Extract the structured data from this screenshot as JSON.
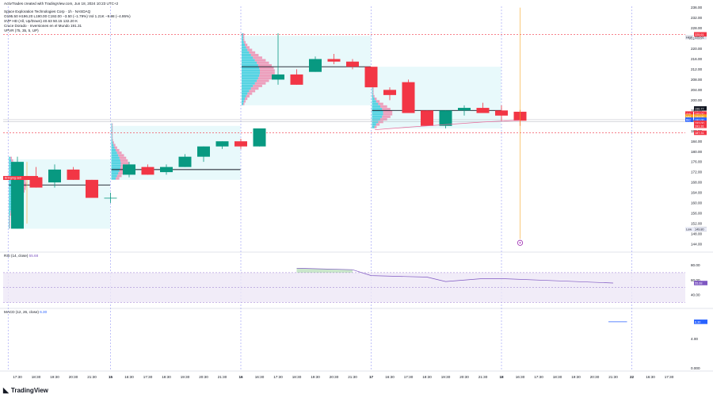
{
  "header": {
    "credit": "ActivTrades created with TradingView.com, Jun 18, 2024 10:23 UTC+2",
    "symbol": "Space Exploration Technologies Corp · 1h · NASDAQ",
    "ohlc": "O195.50 H196.20 L190.00 C192.00 −3.50 (−1.79%) Vol 1.21K −9.98 (−4.95%)",
    "indicator_1": "SVP HD (All, Up/Down) 40.63 50.15 132.20 K",
    "indicator_2": "Cruce Dorado · Inversiones en el Mundo 191.31",
    "indicator_3": "VPVR (75, 35, 5, UP)"
  },
  "panes": {
    "rsi_label": "RSI (14, close)",
    "rsi_value": "55.68",
    "macd_label": "MACD (12, 26, close)",
    "macd_value": "6.30"
  },
  "brand": {
    "name": "TradingView",
    "icon": "tradingview-logo-icon"
  },
  "colors": {
    "up": "#089981",
    "down": "#f23645",
    "profile_up": "#26c6da",
    "profile_down": "#f06292",
    "rsi": "#7e57c2",
    "vline": "#f5a623"
  },
  "chart_data": [
    {
      "type": "candlestick",
      "title": "Space Exploration Technologies Corp · 1h · NASDAQ",
      "x_ticks": [
        "17:30",
        "18:30",
        "19:30",
        "20:30",
        "21:30",
        "15",
        "16:30",
        "17:30",
        "18:30",
        "19:30",
        "20:30",
        "21:30",
        "16",
        "16:30",
        "17:30",
        "18:30",
        "19:30",
        "20:30",
        "21:30",
        "17",
        "16:30",
        "17:30",
        "18:30",
        "19:30",
        "20:30",
        "21:30",
        "18",
        "16:30",
        "17:30",
        "18:30",
        "19:30",
        "20:30",
        "21:30",
        "22",
        "16:30",
        "17:30"
      ],
      "y_ticks": [
        144,
        148,
        152,
        156,
        160,
        164,
        168,
        172,
        176,
        180,
        184,
        188,
        192,
        196,
        200,
        204,
        208,
        212,
        216,
        220,
        224,
        228,
        232,
        236
      ],
      "ylim": [
        141.5,
        236.5
      ],
      "candles": [
        {
          "o": 150,
          "h": 178,
          "l": 150,
          "c": 176
        },
        {
          "o": 170,
          "h": 174,
          "l": 166,
          "c": 166
        },
        {
          "o": 168,
          "h": 175,
          "l": 166,
          "c": 173
        },
        {
          "o": 173,
          "h": 174,
          "l": 169,
          "c": 169
        },
        {
          "o": 169,
          "h": 169,
          "l": 162,
          "c": 162
        },
        {
          "o": 162,
          "h": 164,
          "l": 160,
          "c": 162
        },
        {
          "o": 171,
          "h": 176,
          "l": 170,
          "c": 175
        },
        {
          "o": 174,
          "h": 175,
          "l": 171,
          "c": 171
        },
        {
          "o": 172,
          "h": 175,
          "l": 171,
          "c": 174
        },
        {
          "o": 174,
          "h": 179,
          "l": 174,
          "c": 178
        },
        {
          "o": 178,
          "h": 182,
          "l": 176,
          "c": 182
        },
        {
          "o": 182,
          "h": 184,
          "l": 181,
          "c": 184
        },
        {
          "o": 184,
          "h": 185,
          "l": 181,
          "c": 182
        },
        {
          "o": 182,
          "h": 189,
          "l": 182,
          "c": 189
        },
        {
          "o": 208,
          "h": 226,
          "l": 206,
          "c": 210
        },
        {
          "o": 210,
          "h": 212,
          "l": 206,
          "c": 206
        },
        {
          "o": 211,
          "h": 217,
          "l": 211,
          "c": 216
        },
        {
          "o": 216,
          "h": 218,
          "l": 214,
          "c": 215
        },
        {
          "o": 215,
          "h": 216,
          "l": 212,
          "c": 213
        },
        {
          "o": 213,
          "h": 213,
          "l": 205,
          "c": 205
        },
        {
          "o": 204,
          "h": 205,
          "l": 200,
          "c": 202
        },
        {
          "o": 207,
          "h": 208,
          "l": 195,
          "c": 195
        },
        {
          "o": 196,
          "h": 196,
          "l": 190,
          "c": 190
        },
        {
          "o": 190,
          "h": 196,
          "l": 189,
          "c": 196
        },
        {
          "o": 196,
          "h": 198,
          "l": 194,
          "c": 197
        },
        {
          "o": 197,
          "h": 199,
          "l": 195,
          "c": 195
        },
        {
          "o": 196,
          "h": 198,
          "l": 192,
          "c": 194
        },
        {
          "o": 195.5,
          "h": 196.2,
          "l": 190,
          "c": 192
        }
      ],
      "poc_levels": [
        {
          "price": 167,
          "from": "17:30",
          "to": "15"
        },
        {
          "price": 173,
          "from": "15",
          "to": "16"
        },
        {
          "price": 213,
          "from": "16",
          "to": "17"
        },
        {
          "price": 196,
          "from": "17",
          "to": "18"
        }
      ],
      "value_areas": [
        {
          "from": "17:30",
          "to": "15",
          "low": 150,
          "high": 177
        },
        {
          "from": "15",
          "to": "16",
          "low": 169,
          "high": 190
        },
        {
          "from": "16",
          "to": "17",
          "low": 198,
          "high": 225
        },
        {
          "from": "17",
          "to": "18",
          "low": 189,
          "high": 213
        }
      ],
      "horizontal_levels": [
        {
          "price": 225.61,
          "label": "225.61",
          "style": "dashed"
        },
        {
          "price": 187.31,
          "label": "187.31",
          "style": "dashed"
        }
      ],
      "axis_labels": [
        {
          "text": "225.61",
          "price": 225.61,
          "color": "#f23645"
        },
        {
          "text": "High",
          "price": 224.5,
          "color": "#131722"
        },
        {
          "text": "225.61",
          "price": 224.6,
          "color": "#131722"
        },
        {
          "text": "196.77",
          "price": 196.77,
          "color": "#131722"
        },
        {
          "text": "Ask",
          "price": 194.8,
          "color": "#f23645"
        },
        {
          "text": "195.00",
          "price": 194.8,
          "color": "#f23645"
        },
        {
          "text": "Mid",
          "price": 193.6,
          "color": "#f5a623"
        },
        {
          "text": "193.00",
          "price": 193.6,
          "color": "#f5a623"
        },
        {
          "text": "Bid",
          "price": 192.4,
          "color": "#2962ff"
        },
        {
          "text": "192.00",
          "price": 192.4,
          "color": "#2962ff"
        },
        {
          "text": "193.00",
          "price": 191.2,
          "color": "#f23645"
        },
        {
          "text": "191.31",
          "price": 190,
          "color": "#f23645"
        },
        {
          "text": "187.31",
          "price": 187.31,
          "color": "#f23645"
        },
        {
          "text": "Low",
          "price": 149.8,
          "color": "#131722"
        },
        {
          "text": "149.80",
          "price": 149.8,
          "color": "#131722"
        }
      ],
      "left_marker": "Bringing sell"
    },
    {
      "type": "line",
      "title": "RSI (14, close)",
      "y_ticks": [
        40,
        60,
        80
      ],
      "band": [
        30,
        70
      ],
      "ylim": [
        25,
        87
      ],
      "series": [
        {
          "name": "RSI (14, close)",
          "x_index": [
            15,
            18,
            19,
            22,
            23,
            25,
            26,
            29,
            32
          ],
          "values": [
            76,
            74,
            66,
            64,
            58,
            62,
            62,
            59,
            56
          ]
        }
      ]
    },
    {
      "type": "line",
      "title": "MACD (12, 26, close)",
      "y_ticks": [
        "0.000",
        "4.00"
      ],
      "ylim": [
        -0.2,
        7.8
      ],
      "series": [
        {
          "name": "MACD (12, 26, close)",
          "x_index": [
            32,
            33
          ],
          "values": [
            6.3,
            6.3
          ]
        }
      ]
    }
  ]
}
